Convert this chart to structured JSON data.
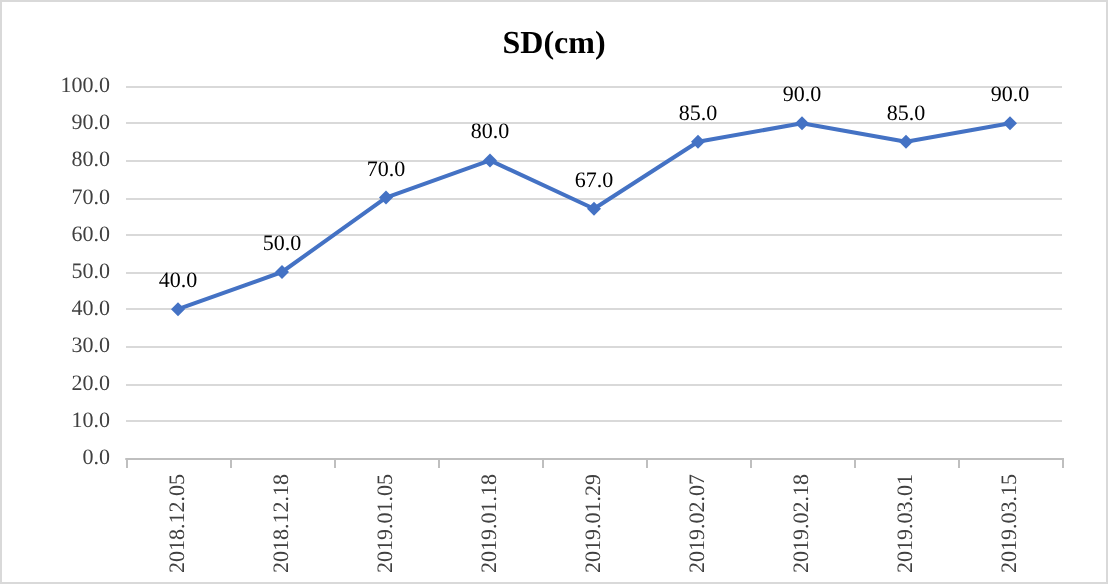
{
  "chart_data": {
    "type": "line",
    "title": "SD(cm)",
    "categories": [
      "2018.12.05",
      "2018.12.18",
      "2019.01.05",
      "2019.01.18",
      "2019.01.29",
      "2019.02.07",
      "2019.02.18",
      "2019.03.01",
      "2019.03.15"
    ],
    "series": [
      {
        "color": "#4472c4",
        "values": [
          40,
          50,
          70,
          80,
          67,
          85,
          90,
          85,
          90
        ],
        "value_labels": [
          "40.0",
          "50.0",
          "70.0",
          "80.0",
          "67.0",
          "85.0",
          "90.0",
          "85.0",
          "90.0"
        ]
      }
    ],
    "ylim": [
      0,
      100
    ],
    "yticks": [
      {
        "value": 0,
        "label": "0.0"
      },
      {
        "value": 10,
        "label": "10.0"
      },
      {
        "value": 20,
        "label": "20.0"
      },
      {
        "value": 30,
        "label": "30.0"
      },
      {
        "value": 40,
        "label": "40.0"
      },
      {
        "value": 50,
        "label": "50.0"
      },
      {
        "value": 60,
        "label": "60.0"
      },
      {
        "value": 70,
        "label": "70.0"
      },
      {
        "value": 80,
        "label": "80.0"
      },
      {
        "value": 90,
        "label": "90.0"
      },
      {
        "value": 100,
        "label": "100.0"
      }
    ],
    "grid": "y",
    "marker": "diamond",
    "line_style": "solid"
  }
}
